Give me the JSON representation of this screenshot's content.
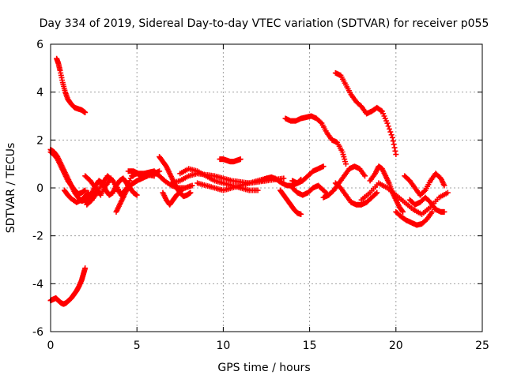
{
  "chart_data": {
    "type": "scatter",
    "title": "Day 334 of 2019, Sidereal Day-to-day VTEC variation (SDTVAR) for receiver p055",
    "xlabel": "GPS time / hours",
    "ylabel": "SDTVAR / TECUs",
    "xlim": [
      0,
      25
    ],
    "ylim": [
      -6,
      6
    ],
    "xticks": [
      0,
      5,
      10,
      15,
      20,
      25
    ],
    "yticks": [
      -6,
      -4,
      -2,
      0,
      2,
      4,
      6
    ],
    "grid": true,
    "marker": "+",
    "color": "#ff0000",
    "series": [
      {
        "name": "arc-upper-left",
        "x": [
          0.35,
          0.45,
          0.55,
          0.7,
          0.85,
          1.0,
          1.2,
          1.4,
          1.6,
          1.8,
          2.0
        ],
        "y": [
          5.4,
          5.2,
          4.9,
          4.4,
          4.0,
          3.7,
          3.5,
          3.35,
          3.3,
          3.25,
          3.15
        ]
      },
      {
        "name": "arc-lower-left",
        "x": [
          0.0,
          0.15,
          0.3,
          0.45,
          0.6,
          0.75,
          0.9,
          1.05,
          1.2,
          1.35,
          1.5,
          1.65,
          1.8,
          1.9,
          2.0
        ],
        "y": [
          -4.7,
          -4.65,
          -4.6,
          -4.7,
          -4.8,
          -4.85,
          -4.8,
          -4.7,
          -4.6,
          -4.45,
          -4.3,
          -4.1,
          -3.85,
          -3.6,
          -3.35
        ]
      },
      {
        "name": "arc-descend-1",
        "x": [
          0.0,
          0.2,
          0.4,
          0.6,
          0.8,
          1.0,
          1.2,
          1.4,
          1.6,
          1.8,
          2.0,
          2.3,
          2.6
        ],
        "y": [
          1.6,
          1.5,
          1.3,
          1.0,
          0.7,
          0.4,
          0.1,
          -0.2,
          -0.4,
          -0.55,
          -0.5,
          -0.35,
          -0.2
        ]
      },
      {
        "name": "arc-descend-2",
        "x": [
          0.0,
          0.2,
          0.4,
          0.6,
          0.8,
          1.0,
          1.2,
          1.4,
          1.6,
          1.8,
          2.0
        ],
        "y": [
          1.5,
          1.4,
          1.2,
          0.9,
          0.6,
          0.3,
          0.1,
          -0.1,
          -0.25,
          -0.2,
          -0.1
        ]
      },
      {
        "name": "arc-low-early",
        "x": [
          0.8,
          1.0,
          1.2,
          1.5,
          1.8,
          2.0,
          2.2
        ],
        "y": [
          -0.1,
          -0.3,
          -0.45,
          -0.6,
          -0.5,
          -0.35,
          -0.2
        ]
      },
      {
        "name": "cluster-a",
        "x": [
          2.0,
          2.2,
          2.4,
          2.6,
          2.8,
          3.0,
          3.2,
          3.4,
          3.6,
          3.8,
          4.0,
          4.2,
          4.4,
          4.6,
          4.8,
          5.0
        ],
        "y": [
          -0.6,
          -0.4,
          -0.2,
          0.1,
          0.3,
          0.2,
          -0.1,
          -0.3,
          -0.2,
          0.1,
          0.3,
          0.4,
          0.2,
          0.0,
          -0.2,
          -0.3
        ]
      },
      {
        "name": "cluster-b",
        "x": [
          2.0,
          2.3,
          2.6,
          2.9,
          3.2,
          3.5,
          3.8,
          4.1,
          4.4,
          4.7,
          5.0,
          5.3,
          5.6,
          6.0
        ],
        "y": [
          0.5,
          0.3,
          0.0,
          -0.3,
          0.1,
          0.4,
          0.1,
          -0.3,
          0.0,
          0.5,
          0.6,
          0.5,
          0.55,
          0.5
        ]
      },
      {
        "name": "cluster-c",
        "x": [
          2.1,
          2.4,
          2.7,
          3.0,
          3.3,
          3.6,
          3.9,
          4.2
        ],
        "y": [
          -0.7,
          -0.5,
          -0.2,
          0.2,
          0.5,
          0.3,
          -0.1,
          -0.4
        ]
      },
      {
        "name": "cluster-d",
        "x": [
          3.8,
          4.0,
          4.2,
          4.4,
          4.6,
          4.8,
          5.0,
          5.3,
          5.6,
          6.0,
          6.3
        ],
        "y": [
          -1.0,
          -0.7,
          -0.4,
          -0.1,
          0.1,
          0.2,
          0.3,
          0.4,
          0.5,
          0.6,
          0.7
        ]
      },
      {
        "name": "cluster-e",
        "x": [
          4.5,
          4.8,
          5.1,
          5.4,
          5.7,
          6.0,
          6.3,
          6.6,
          7.0,
          7.4,
          7.8,
          8.2
        ],
        "y": [
          0.7,
          0.7,
          0.6,
          0.6,
          0.65,
          0.7,
          0.5,
          0.3,
          0.1,
          0.0,
          0.0,
          0.1
        ]
      },
      {
        "name": "arc-6-8",
        "x": [
          6.3,
          6.5,
          6.7,
          6.9,
          7.1,
          7.3,
          7.5,
          7.7,
          7.9,
          8.1
        ],
        "y": [
          1.3,
          1.1,
          0.9,
          0.6,
          0.3,
          0.0,
          -0.2,
          -0.35,
          -0.3,
          -0.2
        ]
      },
      {
        "name": "arc-6-8-low",
        "x": [
          6.5,
          6.7,
          6.9,
          7.1,
          7.3,
          7.6
        ],
        "y": [
          -0.2,
          -0.5,
          -0.7,
          -0.5,
          -0.3,
          -0.1
        ]
      },
      {
        "name": "mid-band-1",
        "x": [
          7.0,
          7.5,
          8.0,
          8.5,
          9.0,
          9.5,
          10.0,
          10.5,
          11.0,
          11.5,
          12.0,
          12.5,
          13.0,
          13.5
        ],
        "y": [
          0.2,
          0.3,
          0.5,
          0.6,
          0.55,
          0.5,
          0.4,
          0.3,
          0.25,
          0.2,
          0.25,
          0.3,
          0.35,
          0.4
        ]
      },
      {
        "name": "mid-band-2",
        "x": [
          7.5,
          8.0,
          8.5,
          9.0,
          9.5,
          10.0,
          10.5,
          11.0,
          11.5,
          12.0
        ],
        "y": [
          0.6,
          0.8,
          0.7,
          0.5,
          0.3,
          0.2,
          0.1,
          0.0,
          -0.1,
          -0.1
        ]
      },
      {
        "name": "mid-band-3",
        "x": [
          8.5,
          9.0,
          9.5,
          10.0,
          10.5,
          11.0,
          11.5,
          12.0,
          12.5,
          13.0
        ],
        "y": [
          0.2,
          0.1,
          0.0,
          -0.1,
          0.0,
          0.1,
          0.2,
          0.3,
          0.4,
          0.4
        ]
      },
      {
        "name": "arc-10-11",
        "x": [
          9.8,
          10.0,
          10.2,
          10.4,
          10.6,
          10.8,
          11.0
        ],
        "y": [
          1.2,
          1.2,
          1.15,
          1.1,
          1.1,
          1.15,
          1.2
        ]
      },
      {
        "name": "arc-12-14",
        "x": [
          12.2,
          12.5,
          12.8,
          13.1,
          13.4,
          13.7,
          14.0,
          14.3,
          14.5
        ],
        "y": [
          0.3,
          0.4,
          0.45,
          0.35,
          0.2,
          0.1,
          0.1,
          0.2,
          0.35
        ]
      },
      {
        "name": "arc-13-14-drop",
        "x": [
          13.3,
          13.5,
          13.7,
          13.9,
          14.1,
          14.3,
          14.5
        ],
        "y": [
          -0.1,
          -0.3,
          -0.5,
          -0.7,
          -0.9,
          -1.05,
          -1.1
        ]
      },
      {
        "name": "arc-15-upper",
        "x": [
          13.6,
          13.9,
          14.2,
          14.5,
          14.8,
          15.1,
          15.4,
          15.7,
          16.0,
          16.3,
          16.6,
          16.9,
          17.1
        ],
        "y": [
          2.9,
          2.8,
          2.8,
          2.9,
          2.95,
          3.0,
          2.9,
          2.7,
          2.3,
          2.0,
          1.9,
          1.5,
          1.0
        ]
      },
      {
        "name": "arc-15-mid",
        "x": [
          14.0,
          14.3,
          14.6,
          14.9,
          15.2,
          15.5,
          15.8
        ],
        "y": [
          0.3,
          0.2,
          0.3,
          0.5,
          0.7,
          0.8,
          0.9
        ]
      },
      {
        "name": "arc-15-low",
        "x": [
          14.0,
          14.3,
          14.6,
          14.9,
          15.2,
          15.5,
          15.8,
          16.1
        ],
        "y": [
          0.0,
          -0.2,
          -0.3,
          -0.2,
          0.0,
          0.1,
          -0.1,
          -0.3
        ]
      },
      {
        "name": "arc-16-17",
        "x": [
          15.8,
          16.1,
          16.4,
          16.7,
          17.0,
          17.3,
          17.6,
          17.9,
          18.2
        ],
        "y": [
          -0.4,
          -0.3,
          -0.1,
          0.2,
          0.5,
          0.8,
          0.9,
          0.8,
          0.5
        ]
      },
      {
        "name": "arc-17-19",
        "x": [
          16.5,
          16.8,
          17.1,
          17.4,
          17.7,
          18.0,
          18.3,
          18.6,
          18.9
        ],
        "y": [
          0.2,
          0.0,
          -0.3,
          -0.6,
          -0.7,
          -0.7,
          -0.6,
          -0.4,
          -0.2
        ]
      },
      {
        "name": "arc-16-20-upper",
        "x": [
          16.5,
          16.8,
          17.1,
          17.4,
          17.7,
          18.0,
          18.3,
          18.6,
          18.9,
          19.2,
          19.5,
          19.8,
          20.0
        ],
        "y": [
          4.8,
          4.7,
          4.3,
          3.9,
          3.6,
          3.4,
          3.1,
          3.2,
          3.35,
          3.2,
          2.7,
          2.1,
          1.4
        ]
      },
      {
        "name": "arc-19-20",
        "x": [
          18.5,
          18.8,
          19.0,
          19.2,
          19.4,
          19.6,
          19.8,
          20.0,
          20.2,
          20.4
        ],
        "y": [
          0.3,
          0.6,
          0.9,
          0.8,
          0.5,
          0.2,
          -0.2,
          -0.5,
          -0.8,
          -1.0
        ]
      },
      {
        "name": "arc-19-23",
        "x": [
          18.0,
          18.5,
          19.0,
          19.5,
          20.0,
          20.5,
          21.0,
          21.5,
          22.0,
          22.5,
          23.0
        ],
        "y": [
          -0.5,
          -0.2,
          0.2,
          0.0,
          -0.3,
          -0.6,
          -0.9,
          -1.1,
          -0.8,
          -0.4,
          -0.2
        ]
      },
      {
        "name": "arc-20-22-low",
        "x": [
          20.0,
          20.3,
          20.6,
          20.9,
          21.2,
          21.5,
          21.8,
          22.1
        ],
        "y": [
          -1.0,
          -1.2,
          -1.35,
          -1.45,
          -1.55,
          -1.5,
          -1.3,
          -1.0
        ]
      },
      {
        "name": "cluster-21-23",
        "x": [
          20.5,
          20.8,
          21.1,
          21.4,
          21.7,
          22.0,
          22.3,
          22.6,
          22.8
        ],
        "y": [
          0.5,
          0.3,
          0.0,
          -0.3,
          -0.1,
          0.3,
          0.6,
          0.4,
          0.1
        ]
      },
      {
        "name": "cluster-21-23-b",
        "x": [
          20.8,
          21.1,
          21.4,
          21.7,
          22.0,
          22.3,
          22.6,
          22.8
        ],
        "y": [
          -0.5,
          -0.7,
          -0.6,
          -0.4,
          -0.6,
          -0.9,
          -1.0,
          -1.0
        ]
      }
    ]
  }
}
